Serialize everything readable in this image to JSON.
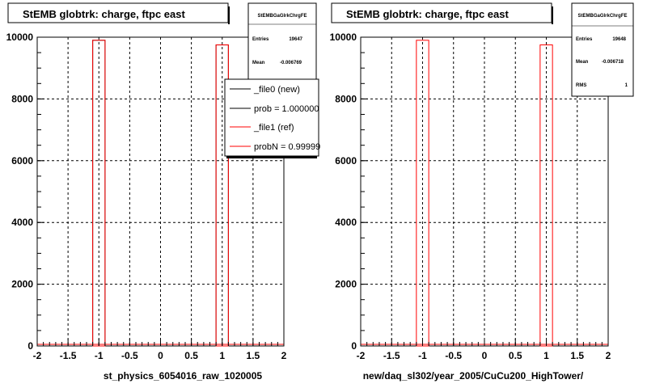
{
  "footer_text": "",
  "chart_data": [
    {
      "type": "bar",
      "title": "StEMB globtrk: charge, ftpc east",
      "xlabel": "st_physics_6054016_raw_1020005",
      "ylabel": "",
      "xlim": [
        -2,
        2
      ],
      "ylim": [
        0,
        10000
      ],
      "xticks": [
        "-2",
        "-1.5",
        "-1",
        "-0.5",
        "0",
        "0.5",
        "1",
        "1.5",
        "2"
      ],
      "yticks": [
        "0",
        "2000",
        "4000",
        "6000",
        "8000",
        "10000"
      ],
      "grid": true,
      "bin_width": 0.2,
      "series": [
        {
          "name": "_file0 (new)",
          "color": "#000000",
          "bins": [
            [
              -1.0,
              9900
            ],
            [
              1.0,
              9750
            ]
          ]
        },
        {
          "name": "_file1 (ref)",
          "color": "#ff0000",
          "bins": [
            [
              -1.0,
              9900
            ],
            [
              1.0,
              9750
            ]
          ]
        }
      ],
      "stats": {
        "name": "StEMBGaGlrkChrgFE",
        "rows": [
          {
            "label": "Entries",
            "value": "19647"
          },
          {
            "label": "Mean",
            "value": "-0.006769"
          }
        ]
      },
      "legend": {
        "placement": "top-right",
        "entries": [
          {
            "label": "_file0 (new)",
            "color": "#000000"
          },
          {
            "label": "prob = 1.000000",
            "color": "#000000"
          },
          {
            "label": "_file1 (ref)",
            "color": "#ff0000"
          },
          {
            "label": "probN = 0.99999",
            "color": "#ff0000"
          }
        ]
      }
    },
    {
      "type": "bar",
      "title": "StEMB globtrk: charge, ftpc east",
      "xlabel": "new/daq_sl302/year_2005/CuCu200_HighTower/",
      "ylabel": "",
      "xlim": [
        -2,
        2
      ],
      "ylim": [
        0,
        10000
      ],
      "xticks": [
        "-2",
        "-1.5",
        "-1",
        "-0.5",
        "0",
        "0.5",
        "1",
        "1.5",
        "2"
      ],
      "yticks": [
        "0",
        "2000",
        "4000",
        "6000",
        "8000",
        "10000"
      ],
      "grid": true,
      "bin_width": 0.2,
      "series": [
        {
          "name": "",
          "color": "#ff0000",
          "bins": [
            [
              -1.0,
              9900
            ],
            [
              1.0,
              9750
            ]
          ]
        }
      ],
      "stats": {
        "name": "StEMBGaGlrkChrgFE",
        "rows": [
          {
            "label": "Entries",
            "value": "19648"
          },
          {
            "label": "Mean",
            "value": "-0.006718"
          },
          {
            "label": "RMS",
            "value": "1"
          }
        ]
      }
    }
  ]
}
